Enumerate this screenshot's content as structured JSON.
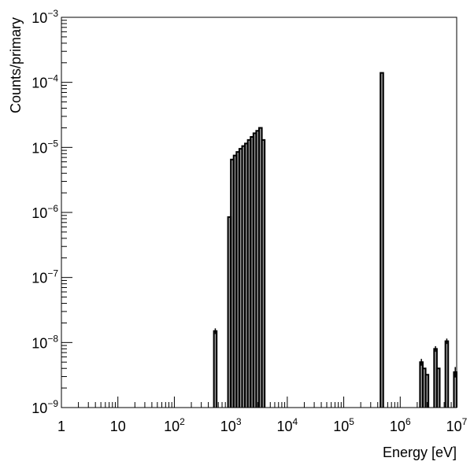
{
  "chart_data": {
    "type": "bar",
    "subtype": "histogram",
    "xlabel": "Energy [eV]",
    "ylabel": "Counts/primary",
    "x_scale": "log",
    "y_scale": "log",
    "xlim": [
      1,
      10000000
    ],
    "ylim": [
      1e-09,
      0.001
    ],
    "grid": false,
    "legend": "none",
    "fill_color": "#999999",
    "line_color": "#000000",
    "x_ticks": [
      {
        "value": 1,
        "base": "1",
        "exp": ""
      },
      {
        "value": 10,
        "base": "10",
        "exp": ""
      },
      {
        "value": 100,
        "base": "10",
        "exp": "2"
      },
      {
        "value": 1000,
        "base": "10",
        "exp": "3"
      },
      {
        "value": 10000,
        "base": "10",
        "exp": "4"
      },
      {
        "value": 100000,
        "base": "10",
        "exp": "5"
      },
      {
        "value": 1000000,
        "base": "10",
        "exp": "6"
      },
      {
        "value": 10000000,
        "base": "10",
        "exp": "7"
      }
    ],
    "y_ticks": [
      {
        "value": 1e-09,
        "base": "10",
        "exp": "−9"
      },
      {
        "value": 1e-08,
        "base": "10",
        "exp": "−8"
      },
      {
        "value": 1e-07,
        "base": "10",
        "exp": "−7"
      },
      {
        "value": 1e-06,
        "base": "10",
        "exp": "−6"
      },
      {
        "value": 1e-05,
        "base": "10",
        "exp": "−5"
      },
      {
        "value": 0.0001,
        "base": "10",
        "exp": "−4"
      },
      {
        "value": 0.001,
        "base": "10",
        "exp": "−3"
      }
    ],
    "bins": [
      {
        "x0": 501,
        "x1": 562,
        "y": 1.5e-08
      },
      {
        "x0": 891,
        "x1": 1000,
        "y": 8.5e-07
      },
      {
        "x0": 1000,
        "x1": 1122,
        "y": 6.5e-06
      },
      {
        "x0": 1122,
        "x1": 1259,
        "y": 7.5e-06
      },
      {
        "x0": 1259,
        "x1": 1413,
        "y": 8.5e-06
      },
      {
        "x0": 1413,
        "x1": 1585,
        "y": 9.5e-06
      },
      {
        "x0": 1585,
        "x1": 1778,
        "y": 1.05e-05
      },
      {
        "x0": 1778,
        "x1": 1995,
        "y": 1.15e-05
      },
      {
        "x0": 1995,
        "x1": 2239,
        "y": 1.3e-05
      },
      {
        "x0": 2239,
        "x1": 2512,
        "y": 1.45e-05
      },
      {
        "x0": 2512,
        "x1": 2818,
        "y": 1.65e-05
      },
      {
        "x0": 2818,
        "x1": 3162,
        "y": 1.8e-05
      },
      {
        "x0": 3162,
        "x1": 3548,
        "y": 2e-05
      },
      {
        "x0": 3548,
        "x1": 3981,
        "y": 1.3e-05
      },
      {
        "x0": 446700,
        "x1": 501200,
        "y": 0.00014
      },
      {
        "x0": 2239000,
        "x1": 2512000,
        "y": 5e-09
      },
      {
        "x0": 2512000,
        "x1": 2818000,
        "y": 4e-09
      },
      {
        "x0": 2818000,
        "x1": 3162000,
        "y": 3.2e-09
      },
      {
        "x0": 3981000,
        "x1": 4467000,
        "y": 8e-09
      },
      {
        "x0": 4467000,
        "x1": 5012000,
        "y": 4e-09
      },
      {
        "x0": 6310000,
        "x1": 7079000,
        "y": 1.05e-08
      },
      {
        "x0": 8913000,
        "x1": 10000000,
        "y": 3.5e-09
      }
    ],
    "error_bars": [
      {
        "x": 531,
        "lo": 1.35e-08,
        "hi": 1.65e-08
      },
      {
        "x": 2371000,
        "lo": 4.4e-09,
        "hi": 5.6e-09
      },
      {
        "x": 4217000,
        "lo": 7.2e-09,
        "hi": 8.8e-09
      },
      {
        "x": 6683000,
        "lo": 9.5e-09,
        "hi": 1.15e-08
      },
      {
        "x": 9441000,
        "lo": 2.9e-09,
        "hi": 4.2e-09
      }
    ]
  }
}
